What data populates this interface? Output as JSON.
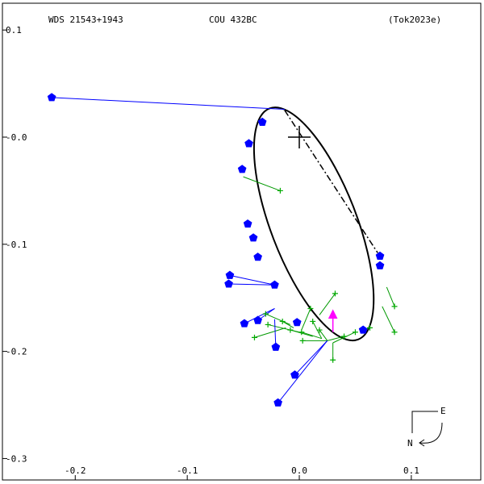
{
  "header": {
    "left": "WDS 21543+1943",
    "center": "COU 432BC",
    "right": "(Tok2023e)"
  },
  "compass": {
    "east": "E",
    "north": "N"
  },
  "colors": {
    "orbit": "#000000",
    "observed": "#0000ff",
    "residual_blue": "#0000ff",
    "residual_green": "#009900",
    "speckle": "#00aa00",
    "highlight": "#ff00ff",
    "frame": "#000000"
  },
  "chart_data": {
    "type": "scatter",
    "title": "COU 432BC",
    "xlabel": "",
    "ylabel": "",
    "xlim": [
      -0.265,
      0.162
    ],
    "ylim": [
      -0.32,
      0.125
    ],
    "x_ticks": [
      {
        "value": -0.2,
        "label": "-0.2"
      },
      {
        "value": -0.1,
        "label": "-0.1"
      },
      {
        "value": 0.0,
        "label": "0.0"
      },
      {
        "value": 0.1,
        "label": "0.1"
      }
    ],
    "y_ticks": [
      {
        "value": 0.1,
        "label": "0.1"
      },
      {
        "value": 0.0,
        "label": "-0.0"
      },
      {
        "value": -0.1,
        "label": "-0.1"
      },
      {
        "value": -0.2,
        "label": "-0.2"
      },
      {
        "value": -0.3,
        "label": "-0.3"
      }
    ],
    "primary": [
      0.0,
      0.0
    ],
    "periastron_line": [
      [
        -0.013,
        0.025
      ],
      [
        0.07,
        -0.108
      ]
    ],
    "orbit_ellipse": {
      "center": [
        0.013,
        -0.081
      ],
      "semi_axes": [
        0.0384,
        0.1155
      ],
      "rotation_deg": -21
    },
    "blue_points": [
      {
        "obs": [
          -0.221,
          0.037
        ],
        "fit": [
          -0.013,
          0.026
        ]
      },
      {
        "obs": [
          -0.033,
          0.014
        ],
        "fit": [
          -0.033,
          0.014
        ]
      },
      {
        "obs": [
          -0.045,
          -0.006
        ],
        "fit": [
          -0.045,
          -0.006
        ]
      },
      {
        "obs": [
          -0.051,
          -0.03
        ],
        "fit": [
          -0.051,
          -0.03
        ]
      },
      {
        "obs": [
          -0.046,
          -0.081
        ],
        "fit": [
          -0.046,
          -0.081
        ]
      },
      {
        "obs": [
          -0.041,
          -0.094
        ],
        "fit": [
          -0.041,
          -0.094
        ]
      },
      {
        "obs": [
          -0.037,
          -0.112
        ],
        "fit": [
          -0.037,
          -0.112
        ]
      },
      {
        "obs": [
          -0.062,
          -0.129
        ],
        "fit": [
          -0.022,
          -0.138
        ]
      },
      {
        "obs": [
          -0.063,
          -0.137
        ],
        "fit": [
          -0.022,
          -0.138
        ]
      },
      {
        "obs": [
          -0.022,
          -0.138
        ],
        "fit": [
          -0.022,
          -0.138
        ]
      },
      {
        "obs": [
          -0.037,
          -0.171
        ],
        "fit": [
          -0.022,
          -0.16
        ]
      },
      {
        "obs": [
          -0.049,
          -0.174
        ],
        "fit": [
          -0.022,
          -0.16
        ]
      },
      {
        "obs": [
          -0.002,
          -0.173
        ],
        "fit": [
          -0.002,
          -0.173
        ]
      },
      {
        "obs": [
          -0.021,
          -0.196
        ],
        "fit": [
          -0.022,
          -0.17
        ]
      },
      {
        "obs": [
          0.057,
          -0.18
        ],
        "fit": [
          0.057,
          -0.18
        ]
      },
      {
        "obs": [
          0.072,
          -0.111
        ],
        "fit": [
          0.072,
          -0.111
        ]
      },
      {
        "obs": [
          0.072,
          -0.12
        ],
        "fit": [
          0.072,
          -0.12
        ]
      },
      {
        "obs": [
          -0.004,
          -0.222
        ],
        "fit": [
          0.025,
          -0.19
        ]
      },
      {
        "obs": [
          -0.019,
          -0.248
        ],
        "fit": [
          0.025,
          -0.19
        ]
      }
    ],
    "green_points": [
      {
        "obs": [
          -0.017,
          -0.05
        ],
        "fit": [
          -0.05,
          -0.037
        ]
      },
      {
        "obs": [
          0.032,
          -0.146
        ],
        "fit": [
          0.018,
          -0.166
        ]
      },
      {
        "obs": [
          0.085,
          -0.158
        ],
        "fit": [
          0.078,
          -0.14
        ]
      },
      {
        "obs": [
          0.085,
          -0.182
        ],
        "fit": [
          0.074,
          -0.158
        ]
      },
      {
        "obs": [
          0.04,
          -0.186
        ],
        "fit": [
          0.025,
          -0.19
        ]
      },
      {
        "obs": [
          0.03,
          -0.208
        ],
        "fit": [
          0.03,
          -0.192
        ]
      },
      {
        "obs": [
          0.05,
          -0.182
        ],
        "fit": [
          0.03,
          -0.192
        ]
      },
      {
        "obs": [
          -0.04,
          -0.187
        ],
        "fit": [
          -0.012,
          -0.178
        ]
      },
      {
        "obs": [
          -0.03,
          -0.165
        ],
        "fit": [
          -0.008,
          -0.175
        ]
      },
      {
        "obs": [
          -0.015,
          -0.172
        ],
        "fit": [
          -0.005,
          -0.178
        ]
      },
      {
        "obs": [
          0.01,
          -0.16
        ],
        "fit": [
          0.002,
          -0.18
        ]
      },
      {
        "obs": [
          0.012,
          -0.172
        ],
        "fit": [
          0.02,
          -0.188
        ]
      },
      {
        "obs": [
          -0.008,
          -0.18
        ],
        "fit": [
          0.012,
          -0.186
        ]
      },
      {
        "obs": [
          0.018,
          -0.18
        ],
        "fit": [
          0.025,
          -0.19
        ]
      },
      {
        "obs": [
          0.002,
          -0.182
        ],
        "fit": [
          0.02,
          -0.188
        ]
      },
      {
        "obs": [
          -0.028,
          -0.175
        ],
        "fit": [
          0.0,
          -0.182
        ]
      },
      {
        "obs": [
          0.063,
          -0.178
        ],
        "fit": [
          0.057,
          -0.18
        ]
      },
      {
        "obs": [
          0.003,
          -0.19
        ],
        "fit": [
          0.025,
          -0.19
        ]
      }
    ],
    "highlight_point": {
      "obs": [
        0.03,
        -0.166
      ],
      "fit": [
        0.03,
        -0.182
      ]
    }
  }
}
